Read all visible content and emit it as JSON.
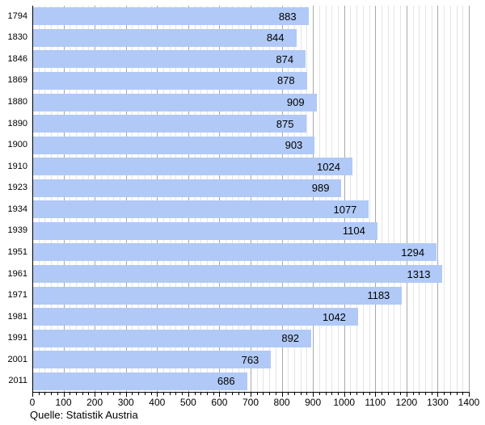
{
  "chart_data": {
    "type": "bar",
    "orientation": "horizontal",
    "title": "",
    "xlabel": "",
    "ylabel": "",
    "categories": [
      "1794",
      "1830",
      "1846",
      "1869",
      "1880",
      "1890",
      "1900",
      "1910",
      "1923",
      "1934",
      "1939",
      "1951",
      "1961",
      "1971",
      "1981",
      "1991",
      "2001",
      "2011"
    ],
    "values": [
      883,
      844,
      874,
      878,
      909,
      875,
      903,
      1024,
      989,
      1077,
      1104,
      1294,
      1313,
      1183,
      1042,
      892,
      763,
      686
    ],
    "xlim": [
      0,
      1400
    ],
    "x_tick_labels": [
      "0",
      "100",
      "200",
      "300",
      "400",
      "500",
      "600",
      "700",
      "800",
      "900",
      "1000",
      "1100",
      "1200",
      "1300",
      "1400"
    ],
    "major_tick_interval": 100,
    "minor_tick_interval": 20,
    "grid": "vertical, minor and major",
    "legend": "none",
    "value_labels": "inside bar end",
    "source": "Quelle: Statistik Austria",
    "colors": {
      "bar_fill": "#b1c9f6",
      "gridline_minor": "#e4e4e4",
      "gridline_major": "#a8a8a8",
      "axis": "#000000",
      "text": "#000000",
      "background": "#ffffff"
    }
  }
}
